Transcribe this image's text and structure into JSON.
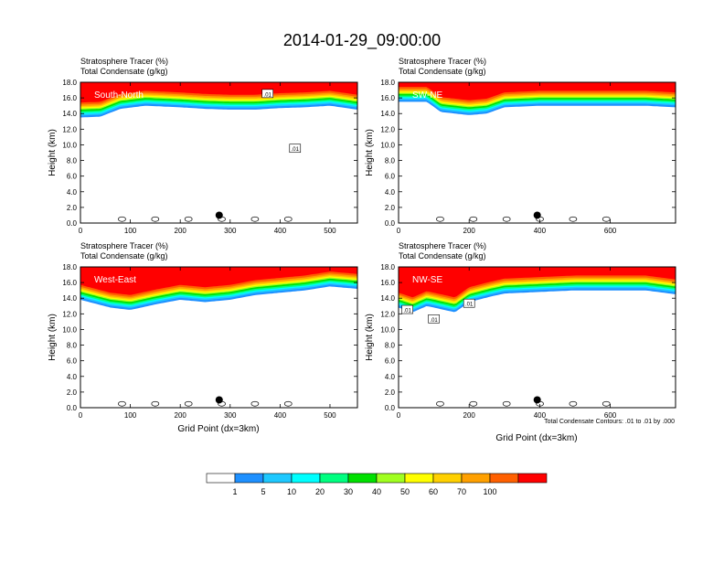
{
  "title": "2014-01-29_09:00:00",
  "header_line1": "Stratosphere Tracer   (%)",
  "header_line2": "Total Condensate   (g/kg)",
  "ylabel": "Height (km)",
  "xlabel": "Grid Point (dx=3km)",
  "footnote": "Total Condensate Contours: .01 to .01 by .000",
  "contour_label": ".01",
  "colors": {
    "tracer_levels": [
      "#ffffff",
      "#1e90ff",
      "#1ec8ff",
      "#00ffff",
      "#00ff80",
      "#00e000",
      "#a0ff20",
      "#ffff00",
      "#ffd000",
      "#ffa000",
      "#ff6000",
      "#ff0000"
    ],
    "marker": "#000000"
  },
  "colorbar": {
    "labels": [
      "1",
      "5",
      "10",
      "20",
      "30",
      "40",
      "50",
      "60",
      "70",
      "100"
    ]
  },
  "chart_data": [
    {
      "type": "heatmap",
      "panel": "South-North",
      "label": "South-North",
      "xlim": [
        0,
        555
      ],
      "ylim": [
        0,
        18
      ],
      "xticks": [
        "0",
        "100",
        "200",
        "300",
        "400",
        "500"
      ],
      "xtick_values": [
        0,
        100,
        200,
        300,
        400,
        500
      ],
      "yticks": [
        "0.0",
        "2.0",
        "4.0",
        "6.0",
        "8.0",
        "10.0",
        "12.0",
        "14.0",
        "16.0",
        "18.0"
      ],
      "ytick_values": [
        0,
        2,
        4,
        6,
        8,
        10,
        12,
        14,
        16,
        18
      ],
      "marker_x": 278,
      "marker_y": 1.0,
      "tracer_base_km": [
        [
          0,
          13.5
        ],
        [
          40,
          13.6
        ],
        [
          80,
          14.6
        ],
        [
          130,
          15.0
        ],
        [
          200,
          14.8
        ],
        [
          250,
          14.6
        ],
        [
          300,
          14.5
        ],
        [
          350,
          14.5
        ],
        [
          400,
          14.7
        ],
        [
          450,
          14.8
        ],
        [
          500,
          15.0
        ],
        [
          555,
          14.5
        ]
      ],
      "cloud_labels": [
        [
          375,
          16.5
        ],
        [
          430,
          9.5
        ]
      ],
      "show_xlabel": false
    },
    {
      "type": "heatmap",
      "panel": "SW-NE",
      "label": "SW-NE",
      "xlim": [
        0,
        785
      ],
      "ylim": [
        0,
        18
      ],
      "xticks": [
        "0",
        "200",
        "400",
        "600"
      ],
      "xtick_values": [
        0,
        200,
        400,
        600
      ],
      "yticks": [
        "0.0",
        "2.0",
        "4.0",
        "6.0",
        "8.0",
        "10.0",
        "12.0",
        "14.0",
        "16.0",
        "18.0"
      ],
      "ytick_values": [
        0,
        2,
        4,
        6,
        8,
        10,
        12,
        14,
        16,
        18
      ],
      "marker_x": 393,
      "marker_y": 1.0,
      "tracer_base_km": [
        [
          0,
          15.5
        ],
        [
          80,
          15.5
        ],
        [
          120,
          14.2
        ],
        [
          200,
          13.8
        ],
        [
          250,
          14.0
        ],
        [
          300,
          14.8
        ],
        [
          400,
          15.0
        ],
        [
          500,
          15.0
        ],
        [
          600,
          15.0
        ],
        [
          700,
          15.0
        ],
        [
          785,
          14.8
        ]
      ],
      "cloud_labels": [],
      "show_xlabel": false
    },
    {
      "type": "heatmap",
      "panel": "West-East",
      "label": "West-East",
      "xlim": [
        0,
        555
      ],
      "ylim": [
        0,
        18
      ],
      "xticks": [
        "0",
        "100",
        "200",
        "300",
        "400",
        "500"
      ],
      "xtick_values": [
        0,
        100,
        200,
        300,
        400,
        500
      ],
      "yticks": [
        "0.0",
        "2.0",
        "4.0",
        "6.0",
        "8.0",
        "10.0",
        "12.0",
        "14.0",
        "16.0",
        "18.0"
      ],
      "ytick_values": [
        0,
        2,
        4,
        6,
        8,
        10,
        12,
        14,
        16,
        18
      ],
      "marker_x": 278,
      "marker_y": 1.0,
      "tracer_base_km": [
        [
          0,
          13.8
        ],
        [
          60,
          12.8
        ],
        [
          100,
          12.5
        ],
        [
          150,
          13.2
        ],
        [
          200,
          13.8
        ],
        [
          250,
          13.5
        ],
        [
          300,
          13.8
        ],
        [
          350,
          14.4
        ],
        [
          400,
          14.7
        ],
        [
          450,
          15.0
        ],
        [
          500,
          15.5
        ],
        [
          555,
          15.2
        ]
      ],
      "cloud_labels": [],
      "show_xlabel": true
    },
    {
      "type": "heatmap",
      "panel": "NW-SE",
      "label": "NW-SE",
      "xlim": [
        0,
        785
      ],
      "ylim": [
        0,
        18
      ],
      "xticks": [
        "0",
        "200",
        "400",
        "600"
      ],
      "xtick_values": [
        0,
        200,
        400,
        600
      ],
      "yticks": [
        "0.0",
        "2.0",
        "4.0",
        "6.0",
        "8.0",
        "10.0",
        "12.0",
        "14.0",
        "16.0",
        "18.0"
      ],
      "ytick_values": [
        0,
        2,
        4,
        6,
        8,
        10,
        12,
        14,
        16,
        18
      ],
      "marker_x": 393,
      "marker_y": 1.0,
      "tracer_base_km": [
        [
          0,
          12.8
        ],
        [
          40,
          12.2
        ],
        [
          80,
          13.0
        ],
        [
          120,
          12.6
        ],
        [
          160,
          12.2
        ],
        [
          200,
          13.5
        ],
        [
          260,
          14.2
        ],
        [
          300,
          14.6
        ],
        [
          400,
          14.8
        ],
        [
          500,
          15.0
        ],
        [
          600,
          15.0
        ],
        [
          700,
          15.0
        ],
        [
          785,
          14.5
        ]
      ],
      "cloud_labels": [
        [
          25,
          12.5
        ],
        [
          100,
          11.3
        ],
        [
          200,
          13.3
        ]
      ],
      "show_xlabel": true
    }
  ]
}
